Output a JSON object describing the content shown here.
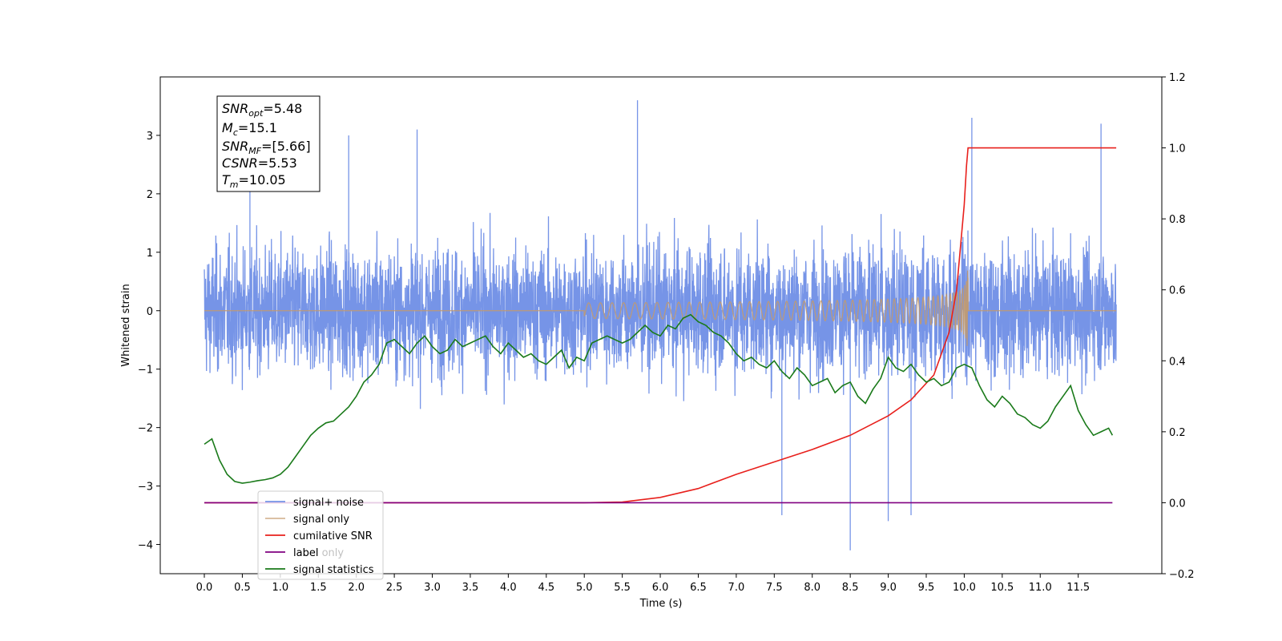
{
  "chart_data": {
    "type": "line",
    "xlabel": "Time (s)",
    "ylabel": "Whitened strain",
    "xlim": [
      -0.58,
      12.6
    ],
    "ylim": [
      -4.5,
      4.0
    ],
    "y2lim": [
      -0.2,
      1.2
    ],
    "x_ticks": [
      "0.0",
      "0.5",
      "1.0",
      "1.5",
      "2.0",
      "2.5",
      "3.0",
      "3.5",
      "4.0",
      "4.5",
      "5.0",
      "5.5",
      "6.0",
      "6.5",
      "7.0",
      "7.5",
      "8.0",
      "8.5",
      "9.0",
      "9.5",
      "10.0",
      "10.5",
      "11.0",
      "11.5"
    ],
    "y_ticks": [
      "3",
      "2",
      "1",
      "0",
      "−1",
      "−2",
      "−3",
      "−4"
    ],
    "y2_ticks": [
      "1.2",
      "1.0",
      "0.8",
      "0.6",
      "0.4",
      "0.2",
      "0.0",
      "−0.2"
    ],
    "series": [
      {
        "name": "signal+ noise",
        "axis": "left",
        "color": "#6f8ee6",
        "envelope": [
          [
            0.0,
            1.0
          ],
          [
            12.0,
            1.0
          ]
        ],
        "outliers": [
          [
            0.6,
            2.4
          ],
          [
            1.9,
            3.0
          ],
          [
            2.8,
            3.1
          ],
          [
            5.7,
            3.6
          ],
          [
            7.6,
            -3.5
          ],
          [
            8.5,
            -4.1
          ],
          [
            9.0,
            -3.6
          ],
          [
            9.3,
            -3.5
          ],
          [
            10.1,
            3.3
          ],
          [
            11.8,
            3.2
          ]
        ]
      },
      {
        "name": "signal only",
        "axis": "left",
        "color": "#c49a6c",
        "chirp_t0": 5.0,
        "merger_t": 10.05,
        "peak_amp": 0.8
      },
      {
        "name": "cumilative SNR",
        "axis": "right",
        "color": "#e8201c",
        "x": [
          0.0,
          5.0,
          5.5,
          6.0,
          6.5,
          7.0,
          7.5,
          8.0,
          8.5,
          9.0,
          9.3,
          9.6,
          9.8,
          9.9,
          10.0,
          10.03,
          10.05,
          12.0
        ],
        "y": [
          0.0,
          0.0,
          0.002,
          0.015,
          0.04,
          0.08,
          0.115,
          0.15,
          0.19,
          0.245,
          0.29,
          0.36,
          0.48,
          0.6,
          0.84,
          0.95,
          1.0,
          1.0
        ]
      },
      {
        "name": "label",
        "axis": "right",
        "color": "#800080",
        "x": [
          0.0,
          11.95
        ],
        "y": [
          0.0,
          0.0
        ]
      },
      {
        "name": "signal statistics",
        "axis": "right",
        "color": "#1a7a1a",
        "x": [
          0.0,
          0.1,
          0.2,
          0.3,
          0.4,
          0.5,
          0.6,
          0.7,
          0.8,
          0.9,
          1.0,
          1.1,
          1.2,
          1.3,
          1.4,
          1.5,
          1.6,
          1.7,
          1.8,
          1.9,
          2.0,
          2.1,
          2.2,
          2.3,
          2.4,
          2.5,
          2.6,
          2.7,
          2.8,
          2.9,
          3.0,
          3.1,
          3.2,
          3.3,
          3.4,
          3.5,
          3.6,
          3.7,
          3.8,
          3.9,
          4.0,
          4.1,
          4.2,
          4.3,
          4.4,
          4.5,
          4.6,
          4.7,
          4.8,
          4.9,
          5.0,
          5.1,
          5.2,
          5.3,
          5.4,
          5.5,
          5.6,
          5.7,
          5.8,
          5.9,
          6.0,
          6.1,
          6.2,
          6.3,
          6.4,
          6.5,
          6.6,
          6.7,
          6.8,
          6.9,
          7.0,
          7.1,
          7.2,
          7.3,
          7.4,
          7.5,
          7.6,
          7.7,
          7.8,
          7.9,
          8.0,
          8.1,
          8.2,
          8.3,
          8.4,
          8.5,
          8.6,
          8.7,
          8.8,
          8.9,
          9.0,
          9.1,
          9.2,
          9.3,
          9.4,
          9.5,
          9.6,
          9.7,
          9.8,
          9.9,
          10.0,
          10.1,
          10.2,
          10.3,
          10.4,
          10.5,
          10.6,
          10.7,
          10.8,
          10.9,
          11.0,
          11.1,
          11.2,
          11.3,
          11.4,
          11.5,
          11.6,
          11.7,
          11.8,
          11.9,
          11.95
        ],
        "y": [
          0.165,
          0.18,
          0.12,
          0.08,
          0.06,
          0.055,
          0.058,
          0.062,
          0.065,
          0.07,
          0.08,
          0.1,
          0.13,
          0.16,
          0.19,
          0.21,
          0.225,
          0.23,
          0.25,
          0.27,
          0.3,
          0.34,
          0.36,
          0.39,
          0.45,
          0.46,
          0.44,
          0.42,
          0.45,
          0.47,
          0.44,
          0.42,
          0.43,
          0.46,
          0.44,
          0.45,
          0.46,
          0.47,
          0.44,
          0.42,
          0.45,
          0.43,
          0.41,
          0.42,
          0.4,
          0.39,
          0.41,
          0.43,
          0.38,
          0.41,
          0.4,
          0.45,
          0.46,
          0.47,
          0.46,
          0.45,
          0.46,
          0.48,
          0.5,
          0.48,
          0.47,
          0.5,
          0.49,
          0.52,
          0.53,
          0.51,
          0.5,
          0.48,
          0.47,
          0.45,
          0.42,
          0.4,
          0.41,
          0.39,
          0.38,
          0.4,
          0.37,
          0.35,
          0.38,
          0.36,
          0.33,
          0.34,
          0.35,
          0.31,
          0.33,
          0.34,
          0.3,
          0.28,
          0.32,
          0.35,
          0.41,
          0.38,
          0.37,
          0.39,
          0.36,
          0.34,
          0.35,
          0.33,
          0.34,
          0.38,
          0.39,
          0.38,
          0.33,
          0.29,
          0.27,
          0.3,
          0.28,
          0.25,
          0.24,
          0.22,
          0.21,
          0.23,
          0.27,
          0.3,
          0.33,
          0.26,
          0.22,
          0.19,
          0.2,
          0.21,
          0.19
        ]
      }
    ],
    "legend_position": "lower-left",
    "annotation": {
      "lines": [
        {
          "base": "SNR",
          "sub": "opt",
          "value": "=5.48"
        },
        {
          "base": "M",
          "sub": "c",
          "value": "=15.1"
        },
        {
          "base": "SNR",
          "sub": "MF",
          "value": "=[5.66]"
        },
        {
          "base": "CSNR",
          "sub": "",
          "value": "=5.53"
        },
        {
          "base": "T",
          "sub": "m",
          "value": "=10.05"
        }
      ]
    },
    "legend_ghost_text": "label only",
    "grid": false
  }
}
